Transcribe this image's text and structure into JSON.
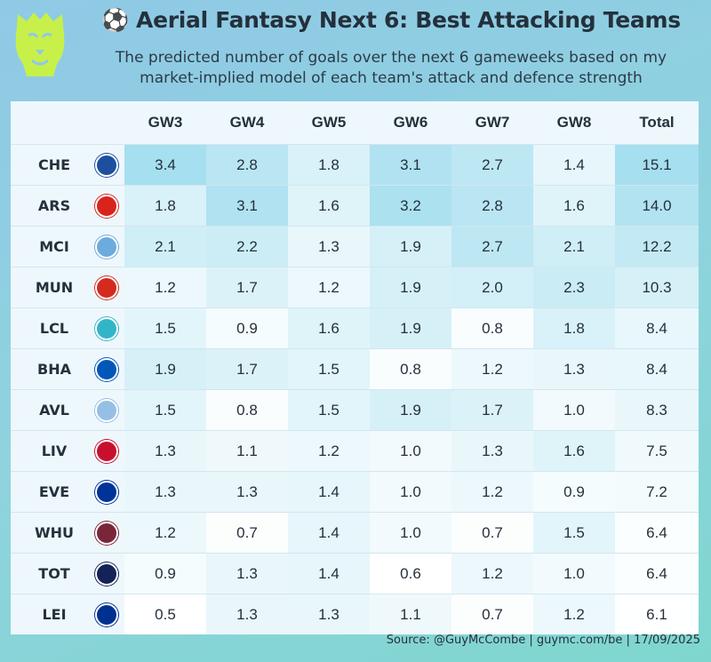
{
  "title": "Aerial Fantasy Next 6: Best Attacking Teams",
  "title_icon": "soccer-ball-icon",
  "subtitle_line1": "The predicted number of goals over the next 6 gameweeks based on my",
  "subtitle_line2": "market-implied model of each team's attack and defence strength",
  "source": "Source: @GuyMcCombe | guymc.com/be | 17/09/2025",
  "colors": {
    "high": "#a6dfef",
    "low": "#ffffff"
  },
  "chart_data": {
    "type": "table",
    "columns": [
      "GW3",
      "GW4",
      "GW5",
      "GW6",
      "GW7",
      "GW8",
      "Total"
    ],
    "rows": [
      {
        "team": "CHE",
        "badge": "chelsea-badge-icon",
        "badge_color": "#1d4fa0",
        "values": [
          3.4,
          2.8,
          1.8,
          3.1,
          2.7,
          1.4,
          15.1
        ]
      },
      {
        "team": "ARS",
        "badge": "arsenal-badge-icon",
        "badge_color": "#d8241c",
        "values": [
          1.8,
          3.1,
          1.6,
          3.2,
          2.8,
          1.6,
          14.0
        ]
      },
      {
        "team": "MCI",
        "badge": "man-city-badge-icon",
        "badge_color": "#6cabdd",
        "values": [
          2.1,
          2.2,
          1.3,
          1.9,
          2.7,
          2.1,
          12.2
        ]
      },
      {
        "team": "MUN",
        "badge": "man-utd-badge-icon",
        "badge_color": "#d52a1e",
        "values": [
          1.2,
          1.7,
          1.2,
          1.9,
          2.0,
          2.3,
          10.3
        ]
      },
      {
        "team": "LCL",
        "badge": "lcl-badge-icon",
        "badge_color": "#33b5c9",
        "values": [
          1.5,
          0.9,
          1.6,
          1.9,
          0.8,
          1.8,
          8.4
        ]
      },
      {
        "team": "BHA",
        "badge": "brighton-badge-icon",
        "badge_color": "#0057b8",
        "values": [
          1.9,
          1.7,
          1.5,
          0.8,
          1.2,
          1.3,
          8.4
        ]
      },
      {
        "team": "AVL",
        "badge": "aston-villa-badge-icon",
        "badge_color": "#95bfe5",
        "values": [
          1.5,
          0.8,
          1.5,
          1.9,
          1.7,
          1.0,
          8.3
        ]
      },
      {
        "team": "LIV",
        "badge": "liverpool-badge-icon",
        "badge_color": "#c8102e",
        "values": [
          1.3,
          1.1,
          1.2,
          1.0,
          1.3,
          1.6,
          7.5
        ]
      },
      {
        "team": "EVE",
        "badge": "everton-badge-icon",
        "badge_color": "#003399",
        "values": [
          1.3,
          1.3,
          1.4,
          1.0,
          1.2,
          0.9,
          7.2
        ]
      },
      {
        "team": "WHU",
        "badge": "west-ham-badge-icon",
        "badge_color": "#7a263a",
        "values": [
          1.2,
          0.7,
          1.4,
          1.0,
          0.7,
          1.5,
          6.4
        ]
      },
      {
        "team": "TOT",
        "badge": "tottenham-badge-icon",
        "badge_color": "#132257",
        "values": [
          0.9,
          1.3,
          1.4,
          0.6,
          1.2,
          1.0,
          6.4
        ]
      },
      {
        "team": "LEI",
        "badge": "leicester-badge-icon",
        "badge_color": "#003090",
        "values": [
          0.5,
          1.3,
          1.3,
          1.1,
          0.7,
          1.2,
          6.1
        ]
      }
    ]
  }
}
